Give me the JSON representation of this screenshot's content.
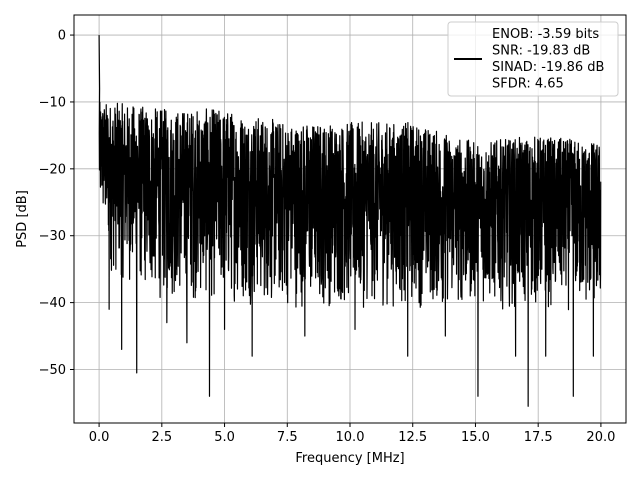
{
  "chart_data": {
    "type": "line",
    "xlabel": "Frequency [MHz]",
    "ylabel": "PSD [dB]",
    "xlim": [
      -1,
      21
    ],
    "ylim": [
      -58,
      3
    ],
    "xticks": [
      0,
      2.5,
      5,
      7.5,
      10,
      12.5,
      15,
      17.5,
      20
    ],
    "xtick_labels": [
      "0.0",
      "2.5",
      "5.0",
      "7.5",
      "10.0",
      "12.5",
      "15.0",
      "17.5",
      "20.0"
    ],
    "yticks": [
      0,
      -10,
      -20,
      -30,
      -40,
      -50
    ],
    "ytick_labels": [
      "0",
      "−10",
      "−20",
      "−30",
      "−40",
      "−50"
    ],
    "grid": true,
    "legend_position": "top-right",
    "series": [
      {
        "color": "#000000",
        "x_start": 0,
        "x_end": 20,
        "peak": {
          "x": 0,
          "y": 0
        },
        "upper_envelope": [
          [
            0.1,
            -10
          ],
          [
            0.5,
            -10
          ],
          [
            2.5,
            -11
          ],
          [
            5,
            -11
          ],
          [
            7.5,
            -13
          ],
          [
            10,
            -13
          ],
          [
            12.5,
            -13
          ],
          [
            15,
            -16
          ],
          [
            17.5,
            -15
          ],
          [
            20,
            -16
          ]
        ],
        "lower_envelope": [
          [
            0.1,
            -28
          ],
          [
            0.5,
            -36
          ],
          [
            2.5,
            -40
          ],
          [
            5,
            -40
          ],
          [
            7.5,
            -41
          ],
          [
            10,
            -41
          ],
          [
            12.5,
            -41
          ],
          [
            15,
            -41
          ],
          [
            17.5,
            -41
          ],
          [
            20,
            -42
          ]
        ],
        "deep_dips": [
          {
            "x": 0.4,
            "y": -41
          },
          {
            "x": 0.9,
            "y": -47
          },
          {
            "x": 1.5,
            "y": -50.5
          },
          {
            "x": 2.7,
            "y": -43
          },
          {
            "x": 3.5,
            "y": -46
          },
          {
            "x": 4.4,
            "y": -54
          },
          {
            "x": 5.0,
            "y": -44
          },
          {
            "x": 6.1,
            "y": -48
          },
          {
            "x": 8.2,
            "y": -45
          },
          {
            "x": 10.2,
            "y": -44
          },
          {
            "x": 12.3,
            "y": -48
          },
          {
            "x": 13.8,
            "y": -45
          },
          {
            "x": 15.1,
            "y": -54
          },
          {
            "x": 16.6,
            "y": -48
          },
          {
            "x": 17.1,
            "y": -55.5
          },
          {
            "x": 17.8,
            "y": -48
          },
          {
            "x": 18.9,
            "y": -54
          },
          {
            "x": 19.7,
            "y": -48
          }
        ]
      }
    ],
    "legend_lines": [
      "ENOB: -3.59 bits",
      "SNR: -19.83 dB",
      "SINAD: -19.86 dB",
      "SFDR: 4.65"
    ]
  }
}
